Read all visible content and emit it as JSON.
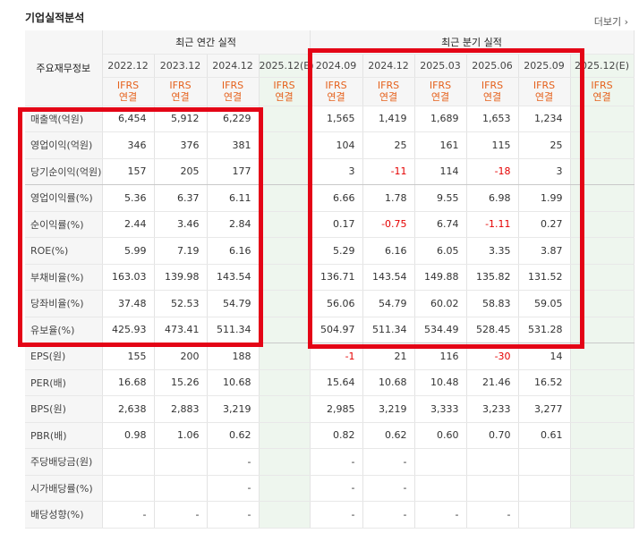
{
  "section_title": "기업실적분석",
  "more_link": "더보기",
  "header": {
    "label": "주요재무정보",
    "annual_group": "최근 연간 실적",
    "quarter_group": "최근 분기 실적",
    "periods": [
      "2022.12",
      "2023.12",
      "2024.12",
      "2025.12(E)",
      "2024.09",
      "2024.12",
      "2025.03",
      "2025.06",
      "2025.09",
      "2025.12(E)"
    ],
    "ifrs_line1": "IFRS",
    "ifrs_line2": "연결"
  },
  "rows": [
    {
      "label": "매출액(억원)",
      "values": [
        "6,454",
        "5,912",
        "6,229",
        "",
        "1,565",
        "1,419",
        "1,689",
        "1,653",
        "1,234",
        ""
      ]
    },
    {
      "label": "영업이익(억원)",
      "values": [
        "346",
        "376",
        "381",
        "",
        "104",
        "25",
        "161",
        "115",
        "25",
        ""
      ]
    },
    {
      "label": "당기순이익(억원)",
      "values": [
        "157",
        "205",
        "177",
        "",
        "3",
        "-11",
        "114",
        "-18",
        "3",
        ""
      ]
    },
    {
      "label": "영업이익률(%)",
      "values": [
        "5.36",
        "6.37",
        "6.11",
        "",
        "6.66",
        "1.78",
        "9.55",
        "6.98",
        "1.99",
        ""
      ]
    },
    {
      "label": "순이익률(%)",
      "values": [
        "2.44",
        "3.46",
        "2.84",
        "",
        "0.17",
        "-0.75",
        "6.74",
        "-1.11",
        "0.27",
        ""
      ]
    },
    {
      "label": "ROE(%)",
      "values": [
        "5.99",
        "7.19",
        "6.16",
        "",
        "5.29",
        "6.16",
        "6.05",
        "3.35",
        "3.87",
        ""
      ]
    },
    {
      "label": "부채비율(%)",
      "values": [
        "163.03",
        "139.98",
        "143.54",
        "",
        "136.71",
        "143.54",
        "149.88",
        "135.82",
        "131.52",
        ""
      ]
    },
    {
      "label": "당좌비율(%)",
      "values": [
        "37.48",
        "52.53",
        "54.79",
        "",
        "56.06",
        "54.79",
        "60.02",
        "58.83",
        "59.05",
        ""
      ]
    },
    {
      "label": "유보율(%)",
      "values": [
        "425.93",
        "473.41",
        "511.34",
        "",
        "504.97",
        "511.34",
        "534.49",
        "528.45",
        "531.28",
        ""
      ]
    },
    {
      "label": "EPS(원)",
      "values": [
        "155",
        "200",
        "188",
        "",
        "-1",
        "21",
        "116",
        "-30",
        "14",
        ""
      ]
    },
    {
      "label": "PER(배)",
      "values": [
        "16.68",
        "15.26",
        "10.68",
        "",
        "15.64",
        "10.68",
        "10.48",
        "21.46",
        "16.52",
        ""
      ]
    },
    {
      "label": "BPS(원)",
      "values": [
        "2,638",
        "2,883",
        "3,219",
        "",
        "2,985",
        "3,219",
        "3,333",
        "3,233",
        "3,277",
        ""
      ]
    },
    {
      "label": "PBR(배)",
      "values": [
        "0.98",
        "1.06",
        "0.62",
        "",
        "0.82",
        "0.62",
        "0.60",
        "0.70",
        "0.61",
        ""
      ]
    },
    {
      "label": "주당배당금(원)",
      "values": [
        "",
        "",
        "-",
        "",
        "-",
        "-",
        "",
        "",
        "",
        ""
      ]
    },
    {
      "label": "시가배당률(%)",
      "values": [
        "",
        "",
        "-",
        "",
        "-",
        "-",
        "",
        "",
        "",
        ""
      ]
    },
    {
      "label": "배당성향(%)",
      "values": [
        "-",
        "-",
        "-",
        "",
        "-",
        "-",
        "-",
        "-",
        "",
        ""
      ]
    }
  ],
  "colors": {
    "highlight": "#e40416",
    "ifrs": "#e5611c",
    "negative": "#e50000"
  }
}
